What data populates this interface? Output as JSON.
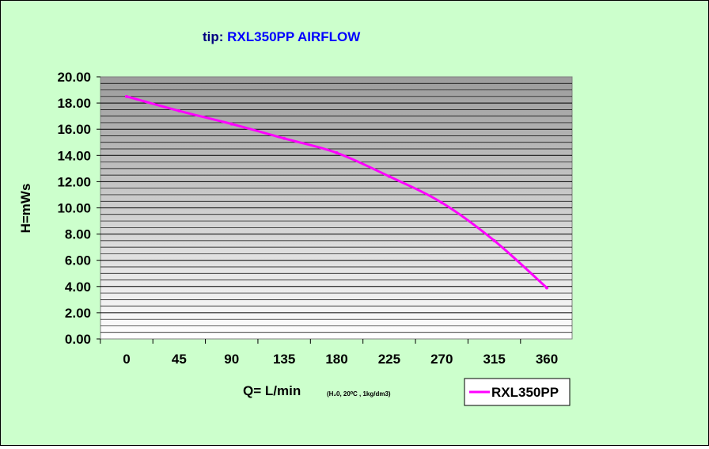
{
  "chart_data": {
    "type": "line",
    "title_prefix": "tip: ",
    "title_main": "RXL350PP  AIRFLOW",
    "xlabel": "Q= L/min",
    "xlabel_note": "(H₂0, 20⁰C , 1kg/dm3)",
    "ylabel": "H=mWs",
    "categories": [
      "0",
      "45",
      "90",
      "135",
      "180",
      "225",
      "270",
      "315",
      "360"
    ],
    "y_ticks": [
      "0.00",
      "2.00",
      "4.00",
      "6.00",
      "8.00",
      "10.00",
      "12.00",
      "14.00",
      "16.00",
      "18.00",
      "20.00"
    ],
    "ylim": [
      0,
      20
    ],
    "grid": "horizontal",
    "legend_position": "bottom-right",
    "series": [
      {
        "name": "RXL350PP",
        "color": "#ff00ff",
        "x": [
          0,
          45,
          90,
          135,
          180,
          225,
          270,
          315,
          360
        ],
        "values": [
          18.5,
          17.4,
          16.4,
          15.3,
          14.2,
          12.4,
          10.4,
          7.5,
          3.9
        ]
      }
    ]
  }
}
